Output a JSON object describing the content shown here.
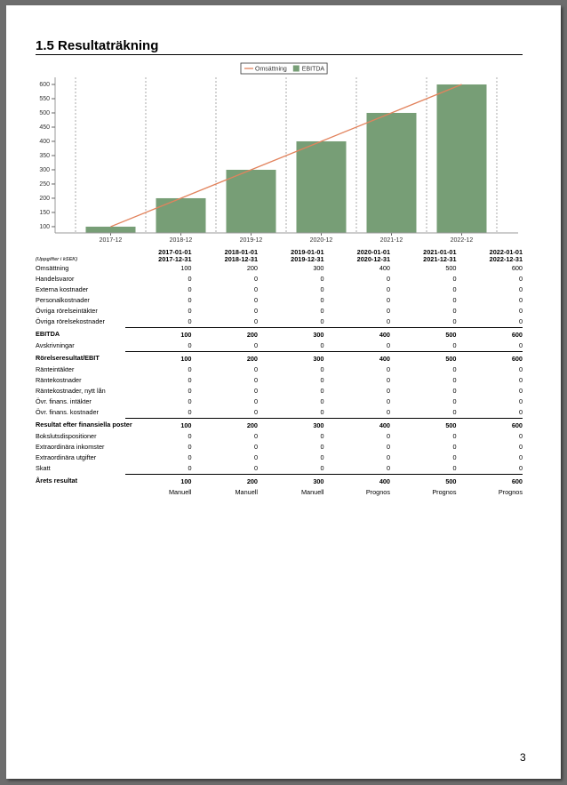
{
  "title": "1.5 Resultaträkning",
  "chart_data": {
    "type": "bar",
    "categories": [
      "2017-12",
      "2018-12",
      "2019-12",
      "2020-12",
      "2021-12",
      "2022-12"
    ],
    "series": [
      {
        "name": "Omsättning",
        "type": "line",
        "color": "#e2835d",
        "values": [
          100,
          200,
          300,
          400,
          500,
          600
        ]
      },
      {
        "name": "EBITDA",
        "type": "bar",
        "color": "#779e76",
        "values": [
          100,
          200,
          300,
          400,
          500,
          600
        ]
      }
    ],
    "ylim": [
      78,
      625
    ],
    "yticks": [
      100,
      150,
      200,
      250,
      300,
      350,
      400,
      450,
      500,
      550,
      600
    ]
  },
  "table": {
    "unit_note": "(Uppgifter i kSEK)",
    "columns": [
      {
        "from": "2017-01-01",
        "to": "2017-12-31"
      },
      {
        "from": "2018-01-01",
        "to": "2018-12-31"
      },
      {
        "from": "2019-01-01",
        "to": "2019-12-31"
      },
      {
        "from": "2020-01-01",
        "to": "2020-12-31"
      },
      {
        "from": "2021-01-01",
        "to": "2021-12-31"
      },
      {
        "from": "2022-01-01",
        "to": "2022-12-31"
      }
    ],
    "rows": [
      {
        "label": "Omsättning",
        "values": [
          100,
          200,
          300,
          400,
          500,
          600
        ]
      },
      {
        "label": "Handelsvaror",
        "values": [
          0,
          0,
          0,
          0,
          0,
          0
        ]
      },
      {
        "label": "Externa kostnader",
        "values": [
          0,
          0,
          0,
          0,
          0,
          0
        ]
      },
      {
        "label": "Personalkostnader",
        "values": [
          0,
          0,
          0,
          0,
          0,
          0
        ]
      },
      {
        "label": "Övriga rörelseintäkter",
        "values": [
          0,
          0,
          0,
          0,
          0,
          0
        ]
      },
      {
        "label": "Övriga rörelsekostnader",
        "values": [
          0,
          0,
          0,
          0,
          0,
          0
        ]
      },
      {
        "label": "EBITDA",
        "bold": true,
        "values": [
          100,
          200,
          300,
          400,
          500,
          600
        ]
      },
      {
        "label": "Avskrivningar",
        "values": [
          0,
          0,
          0,
          0,
          0,
          0
        ]
      },
      {
        "label": "Rörelseresultat/EBIT",
        "bold": true,
        "values": [
          100,
          200,
          300,
          400,
          500,
          600
        ]
      },
      {
        "label": "Ränteintäkter",
        "values": [
          0,
          0,
          0,
          0,
          0,
          0
        ]
      },
      {
        "label": "Räntekostnader",
        "values": [
          0,
          0,
          0,
          0,
          0,
          0
        ]
      },
      {
        "label": "Räntekostnader, nytt lån",
        "values": [
          0,
          0,
          0,
          0,
          0,
          0
        ]
      },
      {
        "label": "Övr. finans. intäkter",
        "values": [
          0,
          0,
          0,
          0,
          0,
          0
        ]
      },
      {
        "label": "Övr. finans. kostnader",
        "values": [
          0,
          0,
          0,
          0,
          0,
          0
        ]
      },
      {
        "label": "Resultat efter finansiella poster",
        "bold": true,
        "values": [
          100,
          200,
          300,
          400,
          500,
          600
        ]
      },
      {
        "label": "Bokslutsdispositioner",
        "values": [
          0,
          0,
          0,
          0,
          0,
          0
        ]
      },
      {
        "label": "Extraordinära inkomster",
        "values": [
          0,
          0,
          0,
          0,
          0,
          0
        ]
      },
      {
        "label": "Extraordinära utgifter",
        "values": [
          0,
          0,
          0,
          0,
          0,
          0
        ]
      },
      {
        "label": "Skatt",
        "values": [
          0,
          0,
          0,
          0,
          0,
          0
        ]
      },
      {
        "label": "Årets resultat",
        "bold": true,
        "values": [
          100,
          200,
          300,
          400,
          500,
          600
        ]
      }
    ],
    "status": [
      "Manuell",
      "Manuell",
      "Manuell",
      "Prognos",
      "Prognos",
      "Prognos"
    ]
  },
  "page_number": 3
}
